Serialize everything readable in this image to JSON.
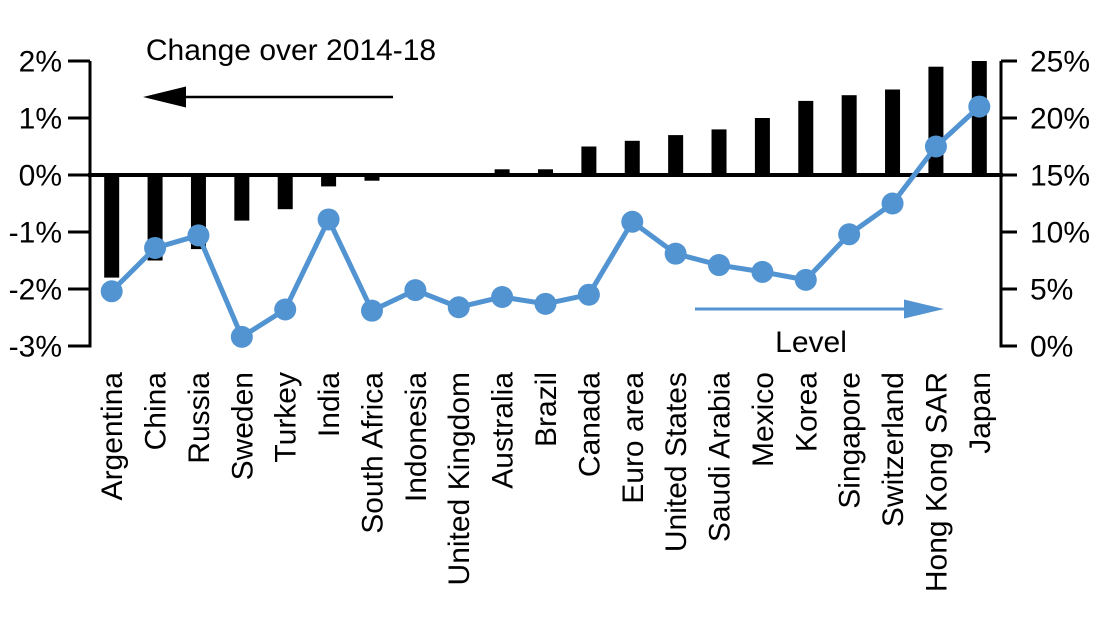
{
  "chart_data": {
    "type": "bar",
    "subtype": "dual-axis combo: bars (left axis) + line with markers (right axis)",
    "categories": [
      "Argentina",
      "China",
      "Russia",
      "Sweden",
      "Turkey",
      "India",
      "South Africa",
      "Indonesia",
      "United Kingdom",
      "Australia",
      "Brazil",
      "Canada",
      "Euro area",
      "United States",
      "Saudi Arabia",
      "Mexico",
      "Korea",
      "Singapore",
      "Switzerland",
      "Hong Kong SAR",
      "Japan"
    ],
    "series": [
      {
        "name": "Change over 2014-18",
        "type": "bar",
        "axis": "left",
        "color": "#000000",
        "unit": "%",
        "values": [
          -1.8,
          -1.5,
          -1.3,
          -0.8,
          -0.6,
          -0.2,
          -0.1,
          0.0,
          0.0,
          0.1,
          0.1,
          0.5,
          0.6,
          0.7,
          0.8,
          1.0,
          1.3,
          1.4,
          1.5,
          1.9,
          2.0
        ]
      },
      {
        "name": "Level",
        "type": "line",
        "axis": "right",
        "color": "#5294D2",
        "unit": "%",
        "values": [
          4.8,
          8.6,
          9.7,
          0.8,
          3.2,
          11.1,
          3.1,
          4.9,
          3.4,
          4.3,
          3.7,
          4.5,
          10.9,
          8.1,
          7.1,
          6.5,
          5.8,
          9.8,
          12.5,
          17.5,
          21.0
        ]
      }
    ],
    "left_axis": {
      "ticks": [
        "2%",
        "1%",
        "0%",
        "-1%",
        "-2%",
        "-3%"
      ],
      "max": 2,
      "min": -3,
      "unit": "%"
    },
    "right_axis": {
      "ticks": [
        "25%",
        "20%",
        "15%",
        "10%",
        "5%",
        "0%"
      ],
      "max": 25,
      "min": 0,
      "unit": "%"
    },
    "annotations": [
      {
        "id": "bars-label",
        "text": "Change over 2014-18",
        "arrow": "left",
        "color": "#000000"
      },
      {
        "id": "line-label",
        "text": "Level",
        "arrow": "right",
        "color": "#5294D2"
      }
    ],
    "legend_position": "in-plot annotations with arrows",
    "grid": false,
    "colors": {
      "bar": "#000000",
      "line": "#5294D2",
      "background": "#ffffff"
    }
  }
}
